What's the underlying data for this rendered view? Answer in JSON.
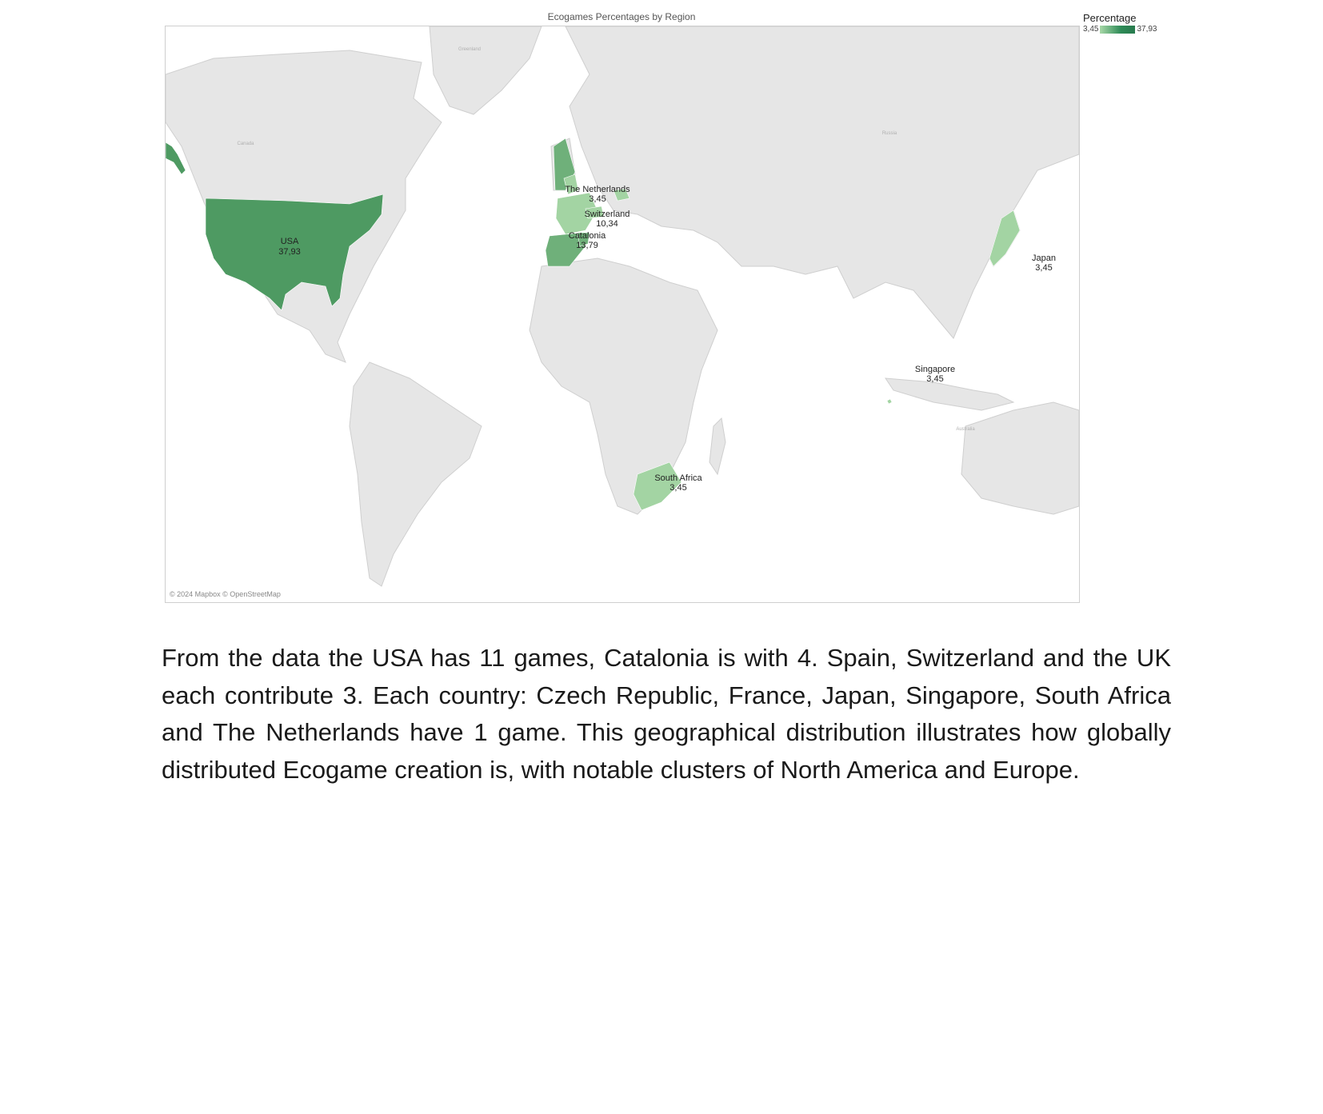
{
  "map": {
    "title": "Ecogames Percentages by Region",
    "attribution": "© 2024 Mapbox © OpenStreetMap",
    "legend": {
      "title": "Percentage",
      "min_label": "3,45",
      "max_label": "37,93",
      "color_min": "#a8d8a8",
      "color_max": "#2e7d4f"
    },
    "land_color": "#e6e6e6",
    "border_color": "#cccccc",
    "regions": [
      {
        "name": "USA",
        "value": "37,93",
        "color": "#4e9a62"
      },
      {
        "name": "Catalonia",
        "value": "13,79",
        "color": "#6fb07a"
      },
      {
        "name": "Switzerland",
        "value": "10,34",
        "color": "#a3d4a3"
      },
      {
        "name": "The Netherlands",
        "value": "3,45",
        "color": "#a3d4a3"
      },
      {
        "name": "Japan",
        "value": "3,45",
        "color": "#a3d4a3"
      },
      {
        "name": "Singapore",
        "value": "3,45",
        "color": "#a3d4a3"
      },
      {
        "name": "South Africa",
        "value": "3,45",
        "color": "#a3d4a3"
      }
    ]
  },
  "paragraph": "From the data the USA has 11 games, Catalonia is with 4. Spain, Switzerland and the UK each contribute 3. Each country: Czech Republic, France, Japan, Singapore, South Africa and The Netherlands have 1 game. This geographical distribution illustrates how globally distributed Ecogame creation is, with notable clusters of North America and Europe."
}
